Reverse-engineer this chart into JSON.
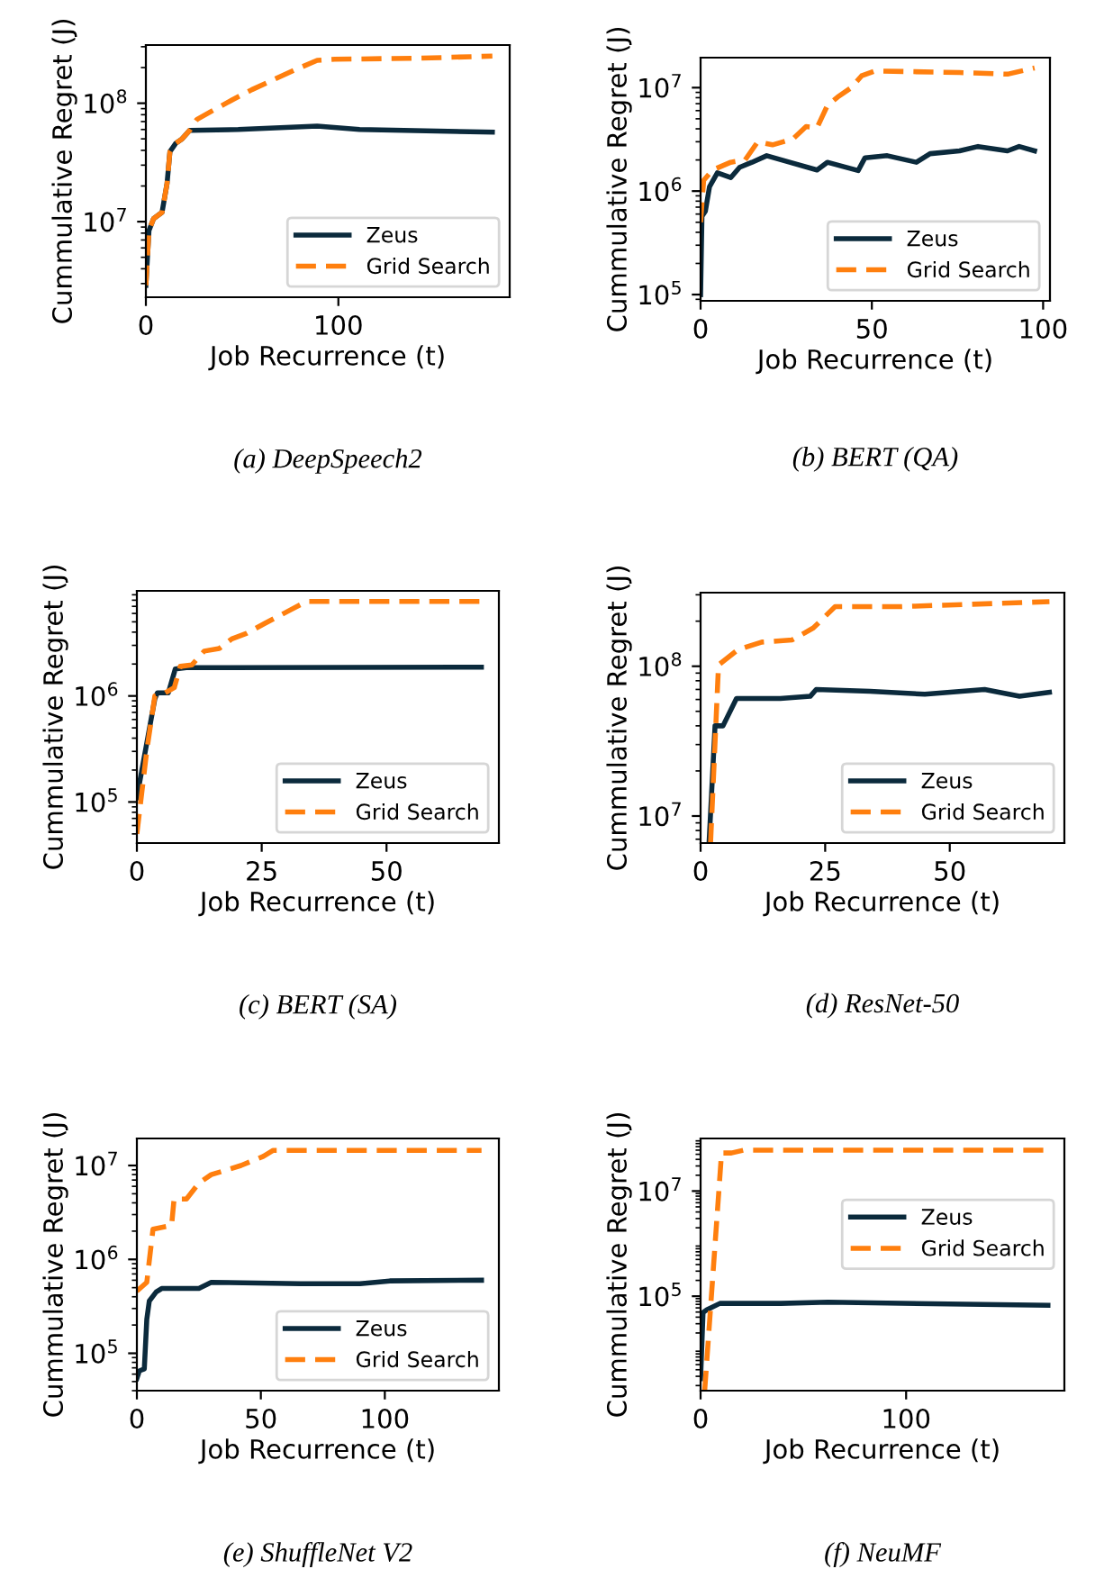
{
  "chart_data": [
    {
      "type": "line",
      "title": "(a) DeepSpeech2",
      "xlabel": "Job Recurrence (t)",
      "ylabel": "Cummulative Regret (J)",
      "log": "y",
      "legend": "bottom right",
      "xlim": [
        0,
        189
      ],
      "xticks": [
        0,
        100
      ],
      "ylim": [
        2300000.0,
        310000000.0
      ],
      "yticks": [
        {
          "value": 10000000.0,
          "label": "10$^{7}$"
        },
        {
          "value": 100000000.0,
          "label": "10$^{8}$"
        }
      ],
      "series": [
        {
          "name": "Zeus",
          "color": "#0b2a3c",
          "line_style": "solid",
          "x": [
            0,
            1.6,
            4,
            8.4,
            11,
            12.5,
            15.6,
            18.8,
            22.8,
            48,
            89,
            111,
            180
          ],
          "values": [
            2900000.0,
            8400000.0,
            10600000.0,
            12000000.0,
            21000000.0,
            39000000.0,
            46000000.0,
            50000000.0,
            59000000.0,
            60000000.0,
            64000000.0,
            60000000.0,
            57000000.0
          ]
        },
        {
          "name": "Grid Search",
          "color": "#ff7f0e",
          "line_style": "dashed",
          "x": [
            0,
            1.6,
            4,
            8.4,
            11,
            12.5,
            15.6,
            18.8,
            22.8,
            26.5,
            36,
            45,
            55,
            67,
            77,
            89,
            98,
            142,
            180
          ],
          "values": [
            2900000.0,
            8400000.0,
            10600000.0,
            12000000.0,
            21000000.0,
            39000000.0,
            46000000.0,
            50000000.0,
            59000000.0,
            73000000.0,
            89000000.0,
            107000000.0,
            130000000.0,
            160000000.0,
            190000000.0,
            230000000.0,
            235000000.0,
            240000000.0,
            250000000.0
          ]
        }
      ]
    },
    {
      "type": "line",
      "title": "(b) BERT (QA)",
      "xlabel": "Job Recurrence (t)",
      "ylabel": "Cummulative Regret (J)",
      "log": "y",
      "legend": "bottom right",
      "xlim": [
        0,
        102
      ],
      "xticks": [
        0,
        50,
        100
      ],
      "ylim": [
        87000.0,
        19500000.0
      ],
      "yticks": [
        {
          "value": 100000.0,
          "label": "10$^{5}$"
        },
        {
          "value": 1000000.0,
          "label": "10$^{6}$"
        },
        {
          "value": 10000000.0,
          "label": "10$^{7}$"
        }
      ],
      "series": [
        {
          "name": "Zeus",
          "color": "#0b2a3c",
          "line_style": "solid",
          "x": [
            0,
            0.4,
            1.4,
            2.6,
            4.9,
            8.8,
            11.4,
            15,
            19.3,
            26,
            34,
            37,
            46,
            48,
            54.5,
            63,
            67,
            75.6,
            81,
            89.6,
            93,
            97.5
          ],
          "values": [
            100000.0,
            570000.0,
            640000.0,
            1100000.0,
            1500000.0,
            1350000.0,
            1700000.0,
            1900000.0,
            2200000.0,
            1900000.0,
            1600000.0,
            1900000.0,
            1580000.0,
            2100000.0,
            2200000.0,
            1900000.0,
            2300000.0,
            2450000.0,
            2700000.0,
            2450000.0,
            2700000.0,
            2450000.0
          ]
        },
        {
          "name": "Grid Search",
          "color": "#ff7f0e",
          "line_style": "dashed",
          "x": [
            0,
            0.9,
            3.5,
            8.8,
            13,
            16.7,
            21,
            27,
            30.8,
            34,
            37,
            40,
            44,
            47,
            51,
            75.6,
            89.6,
            97.5
          ],
          "values": [
            500000.0,
            1270000.0,
            1600000.0,
            1900000.0,
            2000000.0,
            3000000.0,
            2800000.0,
            3200000.0,
            4200000.0,
            4100000.0,
            6700000.0,
            8100000.0,
            10000000.0,
            13000000.0,
            14500000.0,
            14000000.0,
            13500000.0,
            15500000.0
          ]
        }
      ]
    },
    {
      "type": "line",
      "title": "(c) BERT (SA)",
      "xlabel": "Job Recurrence (t)",
      "ylabel": "Cummulative Regret (J)",
      "log": "y",
      "legend": "bottom right",
      "xlim": [
        0,
        72.5
      ],
      "xticks": [
        0,
        25,
        50
      ],
      "ylim": [
        41000.0,
        9800000.0
      ],
      "yticks": [
        {
          "value": 100000.0,
          "label": "10$^{5}$"
        },
        {
          "value": 1000000.0,
          "label": "10$^{6}$"
        }
      ],
      "series": [
        {
          "name": "Zeus",
          "color": "#0b2a3c",
          "line_style": "solid",
          "x": [
            0,
            3.6,
            4.1,
            6.3,
            7.7,
            9.9,
            69
          ],
          "values": [
            110000.0,
            940000.0,
            1070000.0,
            1070000.0,
            1800000.0,
            1850000.0,
            1870000.0
          ]
        },
        {
          "name": "Grid Search",
          "color": "#ff7f0e",
          "line_style": "dashed",
          "x": [
            0,
            2,
            3.6,
            5.7,
            7.5,
            8.7,
            11,
            13.5,
            16.5,
            19,
            22,
            25.5,
            30,
            34,
            69
          ],
          "values": [
            50000.0,
            310000.0,
            1000000.0,
            1070000.0,
            1200000.0,
            1900000.0,
            1960000.0,
            2650000.0,
            2800000.0,
            3450000.0,
            3900000.0,
            4800000.0,
            6200000.0,
            7800000.0,
            7800000.0
          ]
        }
      ]
    },
    {
      "type": "line",
      "title": "(d) ResNet-50",
      "xlabel": "Job Recurrence (t)",
      "ylabel": "Cummulative Regret (J)",
      "log": "y",
      "legend": "bottom right",
      "xlim": [
        0,
        73
      ],
      "xticks": [
        0,
        25,
        50
      ],
      "ylim": [
        6600000.0,
        310000000.0
      ],
      "yticks": [
        {
          "value": 10000000.0,
          "label": "10$^{7}$"
        },
        {
          "value": 100000000.0,
          "label": "10$^{8}$"
        }
      ],
      "series": [
        {
          "name": "Zeus",
          "color": "#0b2a3c",
          "line_style": "solid",
          "x": [
            1.7,
            2.9,
            4.5,
            7.2,
            16,
            22,
            23.2,
            34,
            45,
            57,
            64,
            70
          ],
          "values": [
            6600000.0,
            40000000.0,
            40000000.0,
            61000000.0,
            61000000.0,
            63000000.0,
            70000000.0,
            68000000.0,
            65000000.0,
            70000000.0,
            63000000.0,
            67000000.0
          ]
        },
        {
          "name": "Grid Search",
          "color": "#ff7f0e",
          "line_style": "dashed",
          "x": [
            2,
            3.6,
            7.5,
            12.3,
            18.4,
            22.6,
            27,
            40,
            70
          ],
          "values": [
            6600000.0,
            102000000.0,
            129000000.0,
            145000000.0,
            150000000.0,
            180000000.0,
            250000000.0,
            250000000.0,
            270000000.0
          ]
        }
      ]
    },
    {
      "type": "line",
      "title": "(e) ShuffleNet V2",
      "xlabel": "Job Recurrence (t)",
      "ylabel": "Cummulative Regret (J)",
      "log": "y",
      "legend": "bottom right",
      "xlim": [
        0,
        146
      ],
      "xticks": [
        0,
        50,
        100
      ],
      "ylim": [
        40000.0,
        19400000.0
      ],
      "yticks": [
        {
          "value": 100000.0,
          "label": "10$^{5}$"
        },
        {
          "value": 1000000.0,
          "label": "10$^{6}$"
        },
        {
          "value": 10000000.0,
          "label": "10$^{7}$"
        }
      ],
      "series": [
        {
          "name": "Zeus",
          "color": "#0b2a3c",
          "line_style": "solid",
          "x": [
            0,
            1,
            3,
            4,
            5,
            7.8,
            10,
            25,
            30,
            66,
            90,
            102,
            139
          ],
          "values": [
            54000.0,
            65000.0,
            68000.0,
            230000.0,
            360000.0,
            450000.0,
            490000.0,
            490000.0,
            570000.0,
            550000.0,
            550000.0,
            590000.0,
            600000.0
          ]
        },
        {
          "name": "Grid Search",
          "color": "#ff7f0e",
          "line_style": "dashed",
          "x": [
            0,
            4,
            6.5,
            14,
            15,
            20,
            25,
            30,
            42,
            51,
            55,
            139
          ],
          "values": [
            460000.0,
            570000.0,
            2100000.0,
            2300000.0,
            4400000.0,
            4400000.0,
            6500000.0,
            8000000.0,
            10000000.0,
            12500000.0,
            14500000.0,
            14500000.0
          ]
        }
      ]
    },
    {
      "type": "line",
      "title": "(f) NeuMF",
      "xlabel": "Job Recurrence (t)",
      "ylabel": "Cummulative Regret (J)",
      "log": "y",
      "legend": "center right",
      "xlim": [
        0,
        177
      ],
      "xticks": [
        0,
        100
      ],
      "ylim": [
        1600.0,
        100000000.0
      ],
      "yticks": [
        {
          "value": 100000.0,
          "label": "10$^{5}$"
        },
        {
          "value": 10000000.0,
          "label": "10$^{7}$"
        }
      ],
      "series": [
        {
          "name": "Zeus",
          "color": "#0b2a3c",
          "line_style": "solid",
          "x": [
            0,
            1.2,
            3,
            9.4,
            39,
            62,
            169
          ],
          "values": [
            2700.0,
            49000.0,
            55000.0,
            73000.0,
            73000.0,
            77000.0,
            67000.0
          ]
        },
        {
          "name": "Grid Search",
          "color": "#ff7f0e",
          "line_style": "dashed",
          "x": [
            2,
            10.2,
            15,
            21,
            169
          ],
          "values": [
            1600.0,
            53000000.0,
            53000000.0,
            60000000.0,
            60000000.0
          ]
        }
      ]
    }
  ]
}
